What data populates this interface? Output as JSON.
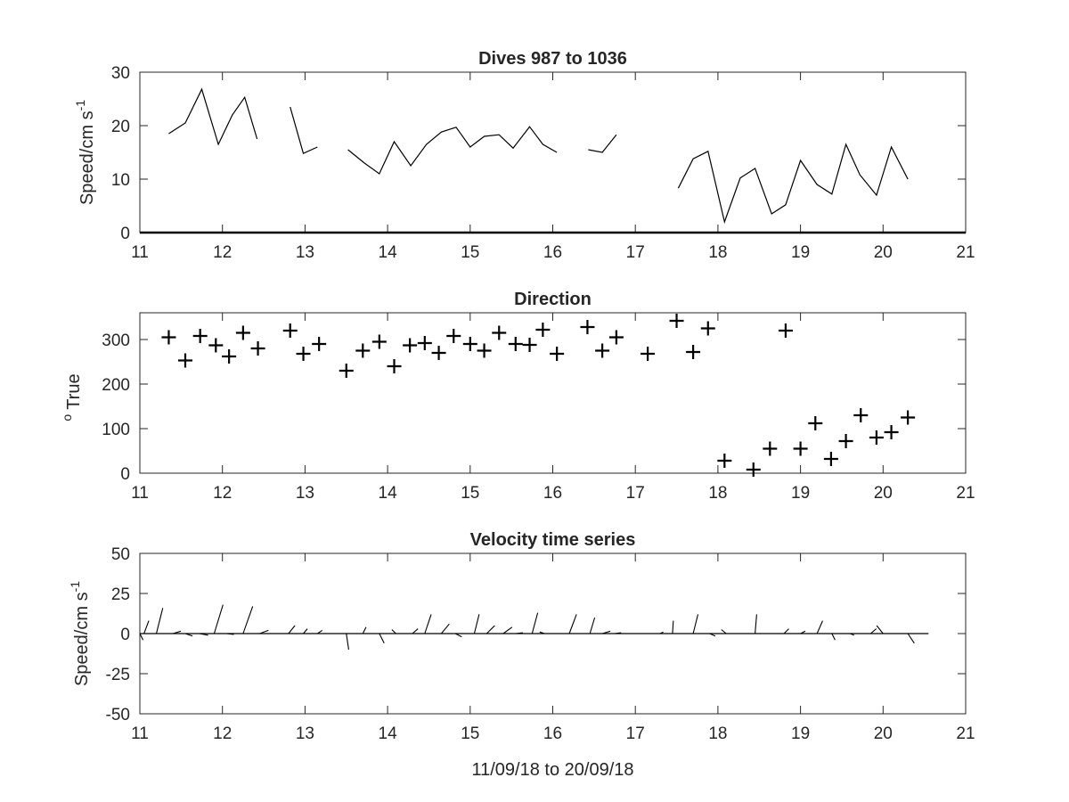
{
  "chart_data": [
    {
      "type": "line",
      "title": "Dives 987 to 1036",
      "ylabel": "Speed/cm s",
      "ylabel_superscript": "-1",
      "xlim": [
        11,
        21
      ],
      "ylim": [
        0,
        30
      ],
      "xticks": [
        "11",
        "12",
        "13",
        "14",
        "15",
        "16",
        "17",
        "18",
        "19",
        "20",
        "21"
      ],
      "yticks": [
        "0",
        "10",
        "20",
        "30"
      ],
      "segments": [
        [
          [
            11.35,
            18.5
          ],
          [
            11.55,
            20.5
          ],
          [
            11.75,
            26.8
          ],
          [
            11.95,
            16.5
          ],
          [
            12.12,
            22.0
          ],
          [
            12.27,
            25.3
          ],
          [
            12.42,
            17.5
          ]
        ],
        [
          [
            12.82,
            23.5
          ],
          [
            12.98,
            14.8
          ],
          [
            13.15,
            16.0
          ]
        ],
        [
          [
            13.52,
            15.5
          ],
          [
            13.72,
            13.0
          ],
          [
            13.9,
            11.0
          ],
          [
            14.08,
            17.0
          ],
          [
            14.28,
            12.5
          ],
          [
            14.47,
            16.5
          ],
          [
            14.65,
            18.8
          ],
          [
            14.83,
            19.7
          ],
          [
            15.0,
            16.0
          ],
          [
            15.17,
            18.0
          ],
          [
            15.35,
            18.3
          ],
          [
            15.52,
            15.8
          ],
          [
            15.72,
            19.8
          ],
          [
            15.88,
            16.5
          ],
          [
            16.05,
            15.0
          ]
        ],
        [
          [
            16.43,
            15.5
          ],
          [
            16.6,
            15.0
          ],
          [
            16.77,
            18.3
          ]
        ],
        [
          [
            17.52,
            8.3
          ],
          [
            17.7,
            13.8
          ],
          [
            17.88,
            15.2
          ],
          [
            18.08,
            2.0
          ],
          [
            18.27,
            10.2
          ],
          [
            18.45,
            12.0
          ],
          [
            18.65,
            3.5
          ],
          [
            18.82,
            5.2
          ],
          [
            19.0,
            13.5
          ],
          [
            19.2,
            9.0
          ],
          [
            19.38,
            7.2
          ],
          [
            19.55,
            16.5
          ],
          [
            19.72,
            10.8
          ],
          [
            19.92,
            7.0
          ],
          [
            20.1,
            16.0
          ],
          [
            20.3,
            10.0
          ]
        ]
      ]
    },
    {
      "type": "scatter",
      "title": "Direction",
      "ylabel": "True",
      "ylabel_superscript": "o",
      "xlim": [
        11,
        21
      ],
      "ylim": [
        0,
        360
      ],
      "xticks": [
        "11",
        "12",
        "13",
        "14",
        "15",
        "16",
        "17",
        "18",
        "19",
        "20",
        "21"
      ],
      "yticks": [
        "0",
        "100",
        "200",
        "300"
      ],
      "x": [
        11.35,
        11.55,
        11.73,
        11.92,
        12.08,
        12.25,
        12.43,
        12.82,
        12.98,
        13.17,
        13.5,
        13.7,
        13.9,
        14.08,
        14.27,
        14.45,
        14.62,
        14.8,
        15.0,
        15.17,
        15.35,
        15.55,
        15.72,
        15.88,
        16.05,
        16.42,
        16.6,
        16.77,
        17.15,
        17.5,
        17.7,
        17.88,
        18.08,
        18.43,
        18.63,
        18.82,
        19.0,
        19.18,
        19.37,
        19.55,
        19.73,
        19.92,
        20.1,
        20.3
      ],
      "y": [
        305,
        253,
        308,
        287,
        262,
        315,
        280,
        320,
        268,
        290,
        230,
        275,
        295,
        240,
        287,
        292,
        270,
        308,
        290,
        275,
        315,
        290,
        288,
        322,
        268,
        328,
        275,
        305,
        268,
        342,
        272,
        325,
        28,
        8,
        55,
        320,
        55,
        112,
        32,
        72,
        130,
        80,
        92,
        125
      ]
    },
    {
      "type": "quiver",
      "title": "Velocity time series",
      "xlabel": "11/09/18 to 20/09/18",
      "ylabel": "Speed/cm s",
      "ylabel_superscript": "-1",
      "xlim": [
        11,
        21
      ],
      "ylim": [
        -50,
        50
      ],
      "xticks": [
        "11",
        "12",
        "13",
        "14",
        "15",
        "16",
        "17",
        "18",
        "19",
        "20",
        "21"
      ],
      "yticks": [
        "-50",
        "-25",
        "0",
        "25",
        "50"
      ],
      "baseline": [
        11,
        20.55
      ],
      "x": [
        11.0,
        11.05,
        11.2,
        11.4,
        11.55,
        11.72,
        11.9,
        12.05,
        12.25,
        12.45,
        12.8,
        12.98,
        13.15,
        13.5,
        13.7,
        13.9,
        14.1,
        14.3,
        14.45,
        14.65,
        14.82,
        15.05,
        15.2,
        15.4,
        15.55,
        15.75,
        15.9,
        16.2,
        16.45,
        16.6,
        16.75,
        17.3,
        17.45,
        17.7,
        17.9,
        18.1,
        18.45,
        18.55,
        18.8,
        19.0,
        19.2,
        19.38,
        19.6,
        19.85,
        20.0,
        20.3
      ],
      "u": [
        2.0,
        3.0,
        4.0,
        5.0,
        4.5,
        5.5,
        5.5,
        4.5,
        6.0,
        5.5,
        4.0,
        2.5,
        3.0,
        1.5,
        2.0,
        3.0,
        -2.5,
        3.5,
        4.0,
        5.0,
        4.0,
        3.0,
        5.0,
        5.5,
        4.5,
        3.5,
        -3.0,
        4.5,
        3.0,
        5.0,
        4.0,
        2.0,
        0.5,
        3.0,
        3.5,
        -3.0,
        1.0,
        0.0,
        3.0,
        3.0,
        3.5,
        2.0,
        2.5,
        3.5,
        -4.0,
        4.0
      ],
      "v": [
        -4.0,
        8.0,
        16.0,
        1.5,
        -1.5,
        -1.0,
        18.0,
        -0.5,
        17.0,
        2.0,
        5.0,
        3.0,
        2.0,
        -10.0,
        4.0,
        -6.0,
        2.5,
        3.0,
        12.0,
        6.0,
        -2.0,
        12.0,
        5.0,
        4.0,
        0.5,
        13.0,
        1.0,
        12.0,
        10.0,
        1.5,
        0.5,
        1.0,
        8.0,
        12.0,
        -1.5,
        2.5,
        12.0,
        0.0,
        3.0,
        1.5,
        8.0,
        -4.0,
        -1.0,
        3.0,
        5.0,
        -6.0
      ]
    }
  ]
}
